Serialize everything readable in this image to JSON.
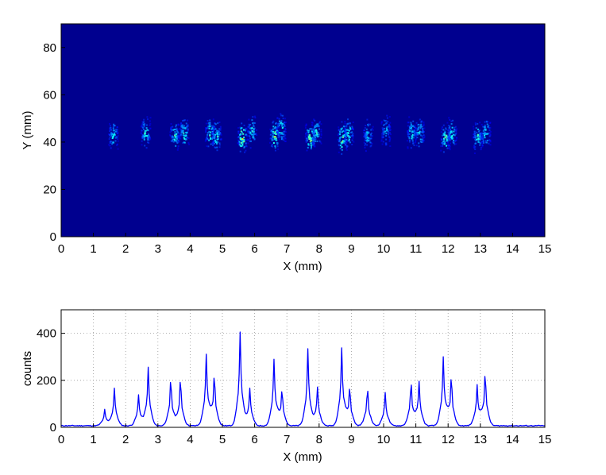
{
  "chart_data": [
    {
      "type": "heatmap",
      "title": "",
      "xlabel": "X (mm)",
      "ylabel": "Y (mm)",
      "xlim": [
        0,
        15
      ],
      "ylim": [
        0,
        90
      ],
      "xticks": [
        "0",
        "1",
        "2",
        "3",
        "4",
        "5",
        "6",
        "7",
        "8",
        "9",
        "10",
        "11",
        "12",
        "13",
        "14",
        "15"
      ],
      "yticks": [
        "0",
        "20",
        "40",
        "60",
        "80"
      ],
      "colormap": "jet",
      "background_color": "#00008f",
      "grid": false,
      "hotspots": [
        {
          "x": 1.6,
          "y": 43,
          "intensity": 0.55
        },
        {
          "x": 2.6,
          "y": 44,
          "intensity": 0.65
        },
        {
          "x": 3.5,
          "y": 43,
          "intensity": 0.6
        },
        {
          "x": 3.8,
          "y": 44,
          "intensity": 0.6
        },
        {
          "x": 4.6,
          "y": 44,
          "intensity": 0.7
        },
        {
          "x": 4.8,
          "y": 43,
          "intensity": 0.6
        },
        {
          "x": 5.6,
          "y": 42,
          "intensity": 0.9
        },
        {
          "x": 5.9,
          "y": 45,
          "intensity": 0.55
        },
        {
          "x": 6.6,
          "y": 43,
          "intensity": 0.8
        },
        {
          "x": 6.8,
          "y": 46,
          "intensity": 0.6
        },
        {
          "x": 7.7,
          "y": 42,
          "intensity": 0.8
        },
        {
          "x": 7.9,
          "y": 44,
          "intensity": 0.55
        },
        {
          "x": 8.7,
          "y": 42,
          "intensity": 0.85
        },
        {
          "x": 8.9,
          "y": 44,
          "intensity": 0.6
        },
        {
          "x": 9.5,
          "y": 43,
          "intensity": 0.5
        },
        {
          "x": 10.05,
          "y": 45,
          "intensity": 0.4
        },
        {
          "x": 10.85,
          "y": 44,
          "intensity": 0.55
        },
        {
          "x": 11.1,
          "y": 44,
          "intensity": 0.55
        },
        {
          "x": 11.9,
          "y": 42,
          "intensity": 0.7
        },
        {
          "x": 12.1,
          "y": 44,
          "intensity": 0.55
        },
        {
          "x": 12.9,
          "y": 42,
          "intensity": 0.6
        },
        {
          "x": 13.15,
          "y": 44,
          "intensity": 0.55
        }
      ]
    },
    {
      "type": "line",
      "title": "",
      "xlabel": "X (mm)",
      "ylabel": "counts",
      "xlim": [
        0,
        15
      ],
      "ylim": [
        0,
        500
      ],
      "xticks": [
        "0",
        "1",
        "2",
        "3",
        "4",
        "5",
        "6",
        "7",
        "8",
        "9",
        "10",
        "11",
        "12",
        "13",
        "14",
        "15"
      ],
      "yticks": [
        "0",
        "200",
        "400"
      ],
      "grid": true,
      "color": "#0000ff",
      "baseline": 5,
      "peaks": [
        {
          "x": 1.35,
          "y": 70
        },
        {
          "x": 1.65,
          "y": 165
        },
        {
          "x": 2.4,
          "y": 135
        },
        {
          "x": 2.7,
          "y": 255
        },
        {
          "x": 3.4,
          "y": 205
        },
        {
          "x": 3.7,
          "y": 205
        },
        {
          "x": 4.5,
          "y": 310
        },
        {
          "x": 4.75,
          "y": 225
        },
        {
          "x": 5.55,
          "y": 410
        },
        {
          "x": 5.85,
          "y": 165
        },
        {
          "x": 6.6,
          "y": 290
        },
        {
          "x": 6.85,
          "y": 160
        },
        {
          "x": 7.65,
          "y": 335
        },
        {
          "x": 7.95,
          "y": 170
        },
        {
          "x": 8.7,
          "y": 340
        },
        {
          "x": 8.95,
          "y": 170
        },
        {
          "x": 9.5,
          "y": 165
        },
        {
          "x": 10.05,
          "y": 145
        },
        {
          "x": 10.85,
          "y": 190
        },
        {
          "x": 11.1,
          "y": 195
        },
        {
          "x": 11.85,
          "y": 300
        },
        {
          "x": 12.1,
          "y": 215
        },
        {
          "x": 12.9,
          "y": 180
        },
        {
          "x": 13.15,
          "y": 235
        }
      ]
    }
  ]
}
